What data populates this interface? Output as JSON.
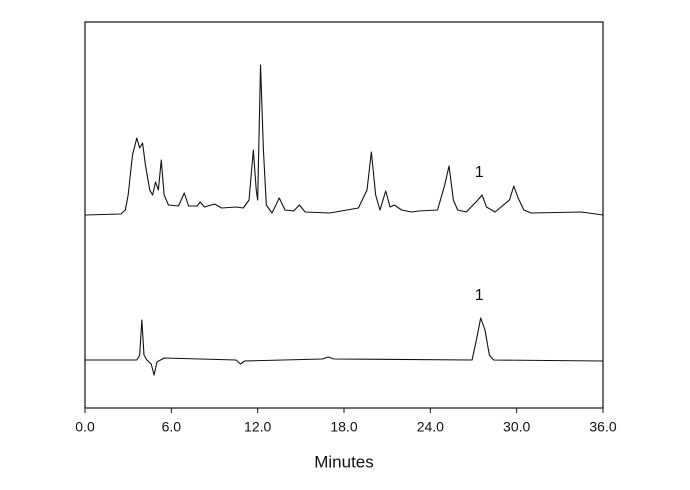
{
  "chart_data": {
    "type": "line",
    "xlabel": "Minutes",
    "xlim": [
      0,
      36
    ],
    "xticks": [
      {
        "value": 0,
        "label": "0.0"
      },
      {
        "value": 6,
        "label": "6.0"
      },
      {
        "value": 12,
        "label": "12.0"
      },
      {
        "value": 18,
        "label": "18.0"
      },
      {
        "value": 24,
        "label": "24.0"
      },
      {
        "value": 30,
        "label": "30.0"
      },
      {
        "value": 36,
        "label": "36.0"
      }
    ],
    "ylim": [
      0,
      386
    ],
    "series": [
      {
        "color": "#111111",
        "x": [
          0,
          2.5,
          2.8,
          3.0,
          3.3,
          3.6,
          3.8,
          4.0,
          4.2,
          4.5,
          4.7,
          4.9,
          5.1,
          5.3,
          5.5,
          5.8,
          6.5,
          6.9,
          7.2,
          7.8,
          8.0,
          8.3,
          9.0,
          9.5,
          10.5,
          11.0,
          11.4,
          11.7,
          11.9,
          12.0,
          12.2,
          12.4,
          12.6,
          13.0,
          13.5,
          13.9,
          14.5,
          14.9,
          15.3,
          17.0,
          19.0,
          19.6,
          19.9,
          20.2,
          20.5,
          20.9,
          21.2,
          21.5,
          22.0,
          22.7,
          23.2,
          24.5,
          25.0,
          25.3,
          25.6,
          25.9,
          26.5,
          27.3,
          27.6,
          27.9,
          28.5,
          29.5,
          29.8,
          30.1,
          30.5,
          31,
          34.5,
          35.0,
          36
        ],
        "values": [
          193,
          194,
          198,
          213,
          253,
          270,
          260,
          265,
          243,
          218,
          213,
          226,
          218,
          248,
          213,
          203,
          202,
          215,
          202,
          202,
          206,
          201,
          204,
          200,
          201,
          200,
          208,
          258,
          218,
          208,
          343,
          258,
          203,
          195,
          210,
          198,
          197,
          203,
          196,
          195,
          200,
          218,
          256,
          213,
          198,
          217,
          201,
          203,
          198,
          196,
          197,
          198,
          223,
          242,
          208,
          198,
          196,
          208,
          213,
          201,
          196,
          208,
          222,
          210,
          198,
          195,
          196,
          195,
          193
        ]
      },
      {
        "color": "#111111",
        "x": [
          0,
          3.6,
          3.8,
          3.95,
          4.1,
          4.3,
          4.6,
          4.8,
          5.0,
          5.5,
          10.5,
          10.8,
          11.1,
          16.5,
          16.9,
          17.3,
          26.9,
          27.2,
          27.5,
          27.8,
          28.1,
          28.4,
          36
        ],
        "values": [
          48,
          48,
          53,
          88,
          53,
          48,
          44,
          33,
          46,
          50,
          48,
          44,
          47,
          49,
          51,
          49,
          48,
          68,
          90,
          78,
          53,
          48,
          47
        ]
      }
    ],
    "annotations": [
      {
        "text": "1",
        "x": 27.4,
        "y": 235
      },
      {
        "text": "1",
        "x": 27.4,
        "y": 112
      }
    ]
  }
}
